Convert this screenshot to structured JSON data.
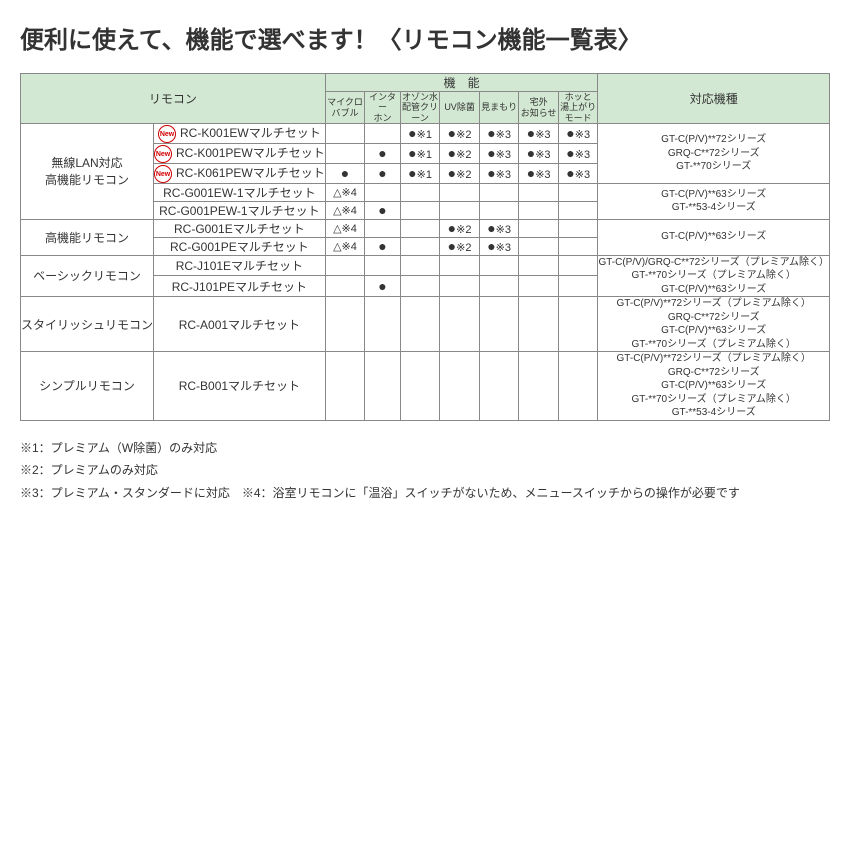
{
  "title": "便利に使えて、機能で選べます！〈リモコン機能一覧表〉",
  "headers": {
    "remote": "リモコン",
    "features": "機　能",
    "models": "対応機種",
    "feat": [
      "マイクロ\nバブル",
      "インター\nホン",
      "オゾン水\n配管クリーン",
      "UV除菌",
      "見まもり",
      "宅外\nお知らせ",
      "ホッと\n湯上がり\nモード"
    ]
  },
  "new_label": "New",
  "groups": [
    {
      "label": "無線LAN対応\n高機能リモコン",
      "rows": [
        {
          "new": true,
          "name": "RC-K001EWマルチセット",
          "feat": [
            "",
            "",
            "●※1",
            "●※2",
            "●※3",
            "●※3",
            "●※3"
          ]
        },
        {
          "new": true,
          "name": "RC-K001PEWマルチセット",
          "feat": [
            "",
            "●",
            "●※1",
            "●※2",
            "●※3",
            "●※3",
            "●※3"
          ]
        },
        {
          "new": true,
          "name": "RC-K061PEWマルチセット",
          "feat": [
            "●",
            "●",
            "●※1",
            "●※2",
            "●※3",
            "●※3",
            "●※3"
          ]
        },
        {
          "new": false,
          "name": "RC-G001EW-1マルチセット",
          "feat": [
            "△※4",
            "",
            "",
            "",
            "",
            "",
            ""
          ]
        },
        {
          "new": false,
          "name": "RC-G001PEW-1マルチセット",
          "feat": [
            "△※4",
            "●",
            "",
            "",
            "",
            "",
            ""
          ]
        }
      ],
      "model_blocks": [
        {
          "rowspan": 3,
          "lines": [
            "GT-C(P/V)**72シリーズ",
            "GRQ-C**72シリーズ",
            "GT-**70シリーズ"
          ]
        },
        {
          "rowspan": 2,
          "lines": [
            "GT-C(P/V)**63シリーズ",
            "GT-**53-4シリーズ"
          ]
        }
      ]
    },
    {
      "label": "高機能リモコン",
      "rows": [
        {
          "new": false,
          "name": "RC-G001Eマルチセット",
          "feat": [
            "△※4",
            "",
            "",
            "●※2",
            "●※3",
            "",
            ""
          ]
        },
        {
          "new": false,
          "name": "RC-G001PEマルチセット",
          "feat": [
            "△※4",
            "●",
            "",
            "●※2",
            "●※3",
            "",
            ""
          ]
        }
      ],
      "model_blocks": [
        {
          "rowspan": 2,
          "lines": [
            "GT-C(P/V)**63シリーズ"
          ]
        }
      ]
    },
    {
      "label": "ベーシックリモコン",
      "rows": [
        {
          "new": false,
          "name": "RC-J101Eマルチセット",
          "feat": [
            "",
            "",
            "",
            "",
            "",
            "",
            ""
          ]
        },
        {
          "new": false,
          "name": "RC-J101PEマルチセット",
          "feat": [
            "",
            "●",
            "",
            "",
            "",
            "",
            ""
          ]
        }
      ],
      "model_blocks": [
        {
          "rowspan": 2,
          "lines": [
            "GT-C(P/V)/GRQ-C**72シリーズ（プレミアム除く）",
            "GT-**70シリーズ（プレミアム除く）",
            "GT-C(P/V)**63シリーズ"
          ]
        }
      ]
    },
    {
      "label": "スタイリッシュリモコン",
      "rows": [
        {
          "new": false,
          "name": "RC-A001マルチセット",
          "feat": [
            "",
            "",
            "",
            "",
            "",
            "",
            ""
          ]
        }
      ],
      "model_blocks": [
        {
          "rowspan": 1,
          "lines": [
            "GT-C(P/V)**72シリーズ（プレミアム除く）",
            "GRQ-C**72シリーズ",
            "GT-C(P/V)**63シリーズ",
            "GT-**70シリーズ（プレミアム除く）"
          ]
        }
      ]
    },
    {
      "label": "シンプルリモコン",
      "rows": [
        {
          "new": false,
          "name": "RC-B001マルチセット",
          "feat": [
            "",
            "",
            "",
            "",
            "",
            "",
            ""
          ]
        }
      ],
      "model_blocks": [
        {
          "rowspan": 1,
          "lines": [
            "GT-C(P/V)**72シリーズ（プレミアム除く）",
            "GRQ-C**72シリーズ",
            "GT-C(P/V)**63シリーズ",
            "GT-**70シリーズ（プレミアム除く）",
            "GT-**53-4シリーズ"
          ]
        }
      ]
    }
  ],
  "notes": [
    "※1：プレミアム（W除菌）のみ対応",
    "※2：プレミアムのみ対応",
    "※3：プレミアム・スタンダードに対応　※4：浴室リモコンに「温浴」スイッチがないため、メニュースイッチからの操作が必要です"
  ],
  "colors": {
    "header_bg": "#d3e8d3",
    "border": "#888888",
    "dashed": "#999999",
    "new": "#d00000",
    "text": "#333333"
  },
  "col_widths": {
    "group": 110,
    "product": 170,
    "feat": 45,
    "models": 210
  }
}
